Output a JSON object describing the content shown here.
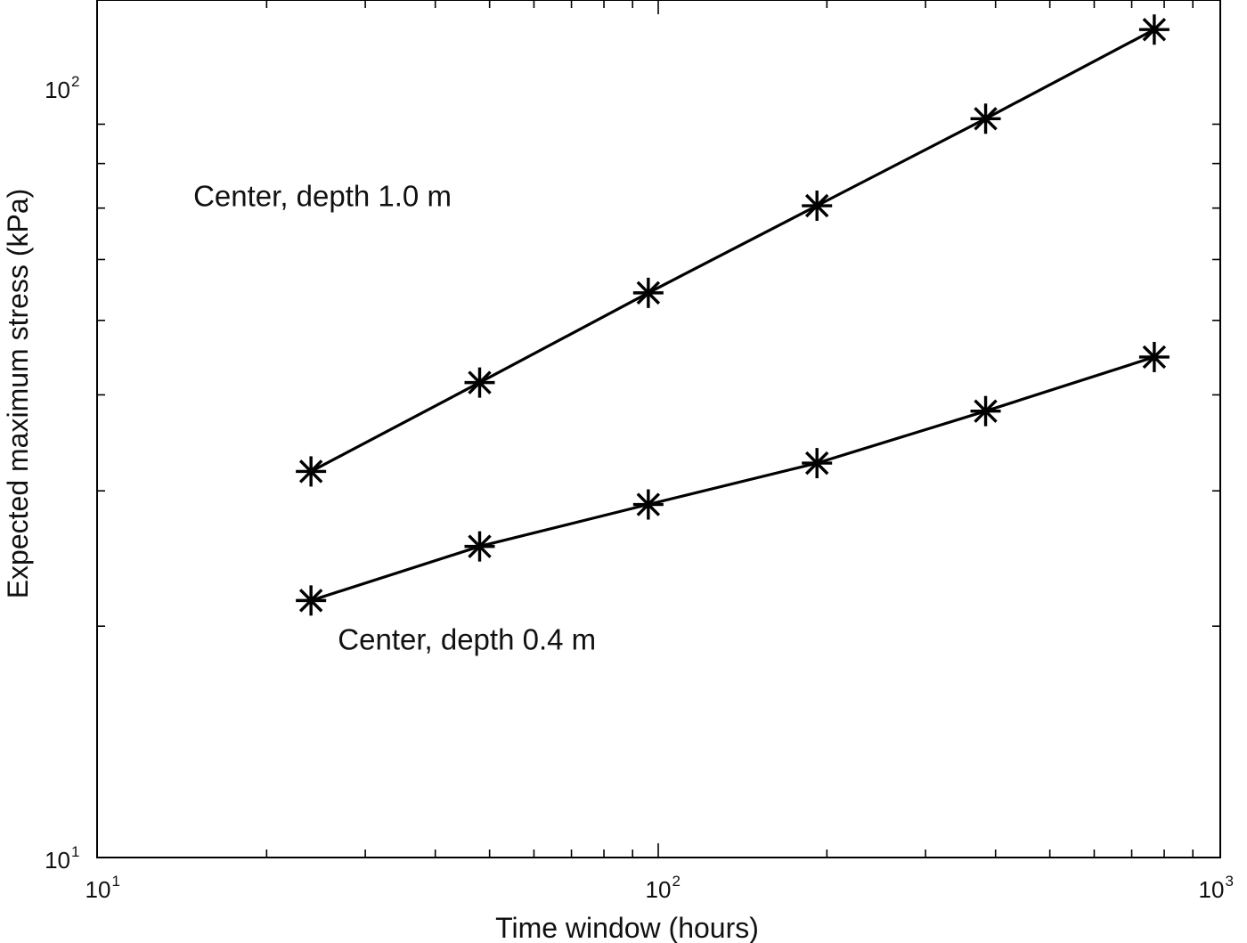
{
  "chart_data": {
    "type": "line",
    "title": "",
    "xlabel": "Time window (hours)",
    "ylabel": "Expected maximum stress  (kPa)",
    "xscale": "log",
    "yscale": "log",
    "xlim": [
      10,
      1000
    ],
    "ylim": [
      10,
      140
    ],
    "grid": false,
    "legend": "none",
    "x_tick_labels": [
      {
        "value": 10,
        "base": "10",
        "exp": "1"
      },
      {
        "value": 100,
        "base": "10",
        "exp": "2"
      },
      {
        "value": 1000,
        "base": "10",
        "exp": "3"
      }
    ],
    "y_tick_labels": [
      {
        "value": 10,
        "base": "10",
        "exp": "1"
      },
      {
        "value": 100,
        "base": "10",
        "exp": "2"
      }
    ],
    "marker": "asterisk",
    "line_color": "#000000",
    "series": [
      {
        "x": [
          24,
          48,
          96,
          192,
          384,
          768
        ],
        "y": [
          31.8,
          41.5,
          54.3,
          70.5,
          91.5,
          119.5
        ]
      },
      {
        "x": [
          24,
          48,
          96,
          192,
          384,
          768
        ],
        "y": [
          21.6,
          25.4,
          28.8,
          32.6,
          38.1,
          44.8
        ]
      }
    ],
    "annotations": [
      {
        "text": "Center,  depth 1.0 m",
        "x": 14.8,
        "y": 72.5
      },
      {
        "text": "Center, depth 0.4 m",
        "x": 26.8,
        "y": 19.2
      }
    ]
  }
}
